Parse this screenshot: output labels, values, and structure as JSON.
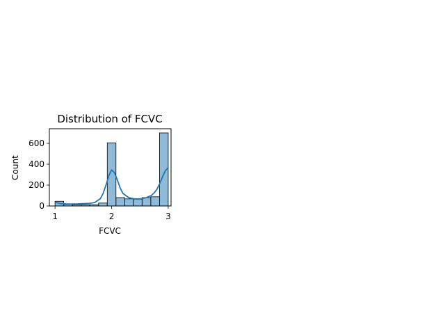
{
  "chart_data": {
    "type": "bar",
    "title": "Distribution of FCVC",
    "xlabel": "FCVC",
    "ylabel": "Count",
    "xlim": [
      0.9,
      3.05
    ],
    "ylim": [
      0,
      740
    ],
    "xticks": [
      1,
      2,
      3
    ],
    "yticks": [
      0,
      200,
      400,
      600
    ],
    "bin_edges": [
      1.0,
      1.154,
      1.308,
      1.462,
      1.615,
      1.769,
      1.923,
      2.077,
      2.231,
      2.385,
      2.538,
      2.692,
      2.846,
      3.0
    ],
    "values": [
      45,
      15,
      12,
      12,
      12,
      28,
      605,
      80,
      68,
      65,
      80,
      88,
      700
    ],
    "bar_color": "#1f77b4",
    "kde": {
      "color": "#1f77b4",
      "x": [
        1.0,
        1.1,
        1.2,
        1.3,
        1.4,
        1.5,
        1.6,
        1.7,
        1.8,
        1.85,
        1.9,
        1.95,
        2.0,
        2.05,
        2.1,
        2.15,
        2.2,
        2.3,
        2.4,
        2.5,
        2.6,
        2.7,
        2.75,
        2.8,
        2.85,
        2.9,
        2.95,
        3.0
      ],
      "y": [
        36,
        22,
        20,
        19,
        20,
        22,
        25,
        33,
        70,
        120,
        200,
        290,
        345,
        320,
        250,
        175,
        120,
        80,
        68,
        68,
        78,
        100,
        125,
        160,
        215,
        280,
        340,
        365
      ]
    },
    "grid": false,
    "legend": "none"
  }
}
